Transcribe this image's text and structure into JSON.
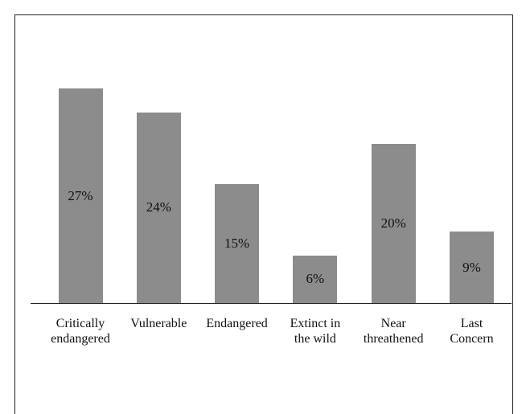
{
  "chart_data": {
    "type": "bar",
    "categories": [
      "Critically endangered",
      "Vulnerable",
      "Endangered",
      "Extinct in the wild",
      "Near threathened",
      "Last Concern"
    ],
    "values": [
      27,
      24,
      15,
      6,
      20,
      9
    ],
    "value_labels": [
      "27%",
      "24%",
      "15%",
      "6%",
      "20%",
      "9%"
    ],
    "color": "#8c8c8c"
  }
}
